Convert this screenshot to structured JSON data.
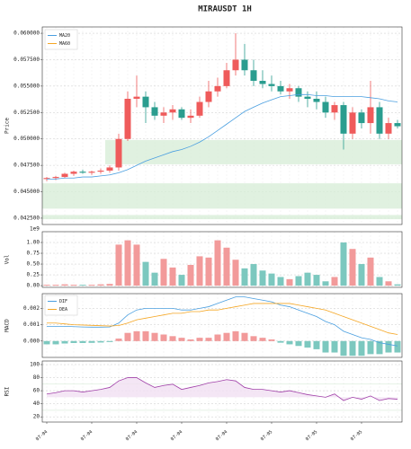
{
  "chart_data": [
    {
      "type": "candlestick",
      "title": "MIRAUSDT 1H",
      "ylabel": "Price",
      "ylim": [
        0.0419,
        0.0606
      ],
      "yticks": [
        {
          "value": 0.0425,
          "label": "0.042500"
        },
        {
          "value": 0.045,
          "label": "0.045000"
        },
        {
          "value": 0.0475,
          "label": "0.047500"
        },
        {
          "value": 0.05,
          "label": "0.050000"
        },
        {
          "value": 0.0525,
          "label": "0.052500"
        },
        {
          "value": 0.055,
          "label": "0.055000"
        },
        {
          "value": 0.0575,
          "label": "0.057500"
        },
        {
          "value": 0.06,
          "label": "0.060000"
        }
      ],
      "grid": true,
      "up_color": "#ef5b5b",
      "down_color": "#2a9d8f",
      "zone_color": "#d8eed8",
      "open": [
        0.0462,
        0.0463,
        0.0464,
        0.0467,
        0.0469,
        0.0468,
        0.0469,
        0.047,
        0.0473,
        0.05,
        0.0538,
        0.054,
        0.053,
        0.0522,
        0.0525,
        0.0528,
        0.052,
        0.0522,
        0.0535,
        0.0545,
        0.055,
        0.0565,
        0.0575,
        0.0565,
        0.0555,
        0.0552,
        0.055,
        0.0545,
        0.0548,
        0.054,
        0.0538,
        0.0535,
        0.0525,
        0.0532,
        0.0505,
        0.0525,
        0.0515,
        0.053,
        0.0505,
        0.0515
      ],
      "high": [
        0.0464,
        0.0465,
        0.0468,
        0.047,
        0.0471,
        0.047,
        0.0472,
        0.0475,
        0.0505,
        0.0545,
        0.056,
        0.0545,
        0.0535,
        0.053,
        0.0532,
        0.053,
        0.0528,
        0.054,
        0.0555,
        0.0558,
        0.0572,
        0.06,
        0.059,
        0.0575,
        0.0565,
        0.056,
        0.0555,
        0.0552,
        0.055,
        0.0545,
        0.0545,
        0.054,
        0.0535,
        0.0535,
        0.053,
        0.0528,
        0.0555,
        0.0535,
        0.052,
        0.0518
      ],
      "low": [
        0.046,
        0.0461,
        0.0463,
        0.0465,
        0.0467,
        0.0466,
        0.0467,
        0.0468,
        0.047,
        0.0498,
        0.053,
        0.0515,
        0.0518,
        0.0515,
        0.0518,
        0.0518,
        0.0515,
        0.052,
        0.053,
        0.054,
        0.0548,
        0.056,
        0.056,
        0.055,
        0.0548,
        0.0545,
        0.0542,
        0.0538,
        0.0535,
        0.053,
        0.0528,
        0.052,
        0.0518,
        0.049,
        0.05,
        0.051,
        0.0505,
        0.05,
        0.05,
        0.051
      ],
      "close": [
        0.0463,
        0.0464,
        0.0467,
        0.0469,
        0.0468,
        0.0469,
        0.047,
        0.0473,
        0.05,
        0.0538,
        0.054,
        0.053,
        0.0522,
        0.0525,
        0.0528,
        0.052,
        0.0522,
        0.0535,
        0.0545,
        0.055,
        0.0565,
        0.0575,
        0.0565,
        0.0555,
        0.0552,
        0.055,
        0.0545,
        0.0548,
        0.054,
        0.0538,
        0.0535,
        0.0525,
        0.0532,
        0.0505,
        0.0525,
        0.0515,
        0.053,
        0.0505,
        0.0515,
        0.0512
      ],
      "series": [
        {
          "name": "MA20",
          "color": "#4a9fe0",
          "values": [
            0.0462,
            0.0462,
            0.0463,
            0.0463,
            0.0464,
            0.0464,
            0.0465,
            0.0466,
            0.0468,
            0.0471,
            0.0475,
            0.0479,
            0.0482,
            0.0485,
            0.0488,
            0.049,
            0.0493,
            0.0497,
            0.0502,
            0.0508,
            0.0514,
            0.052,
            0.0526,
            0.053,
            0.0534,
            0.0537,
            0.054,
            0.0541,
            0.0542,
            0.0542,
            0.0541,
            0.0541,
            0.054,
            0.054,
            0.054,
            0.054,
            0.0539,
            0.0538,
            0.0536,
            0.0535
          ]
        },
        {
          "name": "MA60",
          "color": "#f5a623",
          "values": [
            null,
            null,
            null,
            null,
            null,
            null,
            null,
            null,
            null,
            null,
            null,
            null,
            null,
            null,
            null,
            null,
            null,
            null,
            null,
            null,
            null,
            null,
            null,
            null,
            null,
            null,
            null,
            null,
            null,
            null,
            null,
            null,
            null,
            null,
            null,
            null,
            null,
            null,
            null,
            null
          ]
        }
      ],
      "zones": [
        {
          "low": 0.0476,
          "high": 0.0499,
          "start": 7
        },
        {
          "low": 0.0434,
          "high": 0.0458,
          "start": 0
        },
        {
          "low": 0.0424,
          "high": 0.0428,
          "start": 0
        }
      ]
    },
    {
      "type": "volume",
      "ylabel": "Vol",
      "offset": "1e9",
      "ylim": [
        -0.04,
        1.25
      ],
      "yticks": [
        {
          "value": 0,
          "label": "0.00"
        },
        {
          "value": 0.25,
          "label": "0.25"
        },
        {
          "value": 0.5,
          "label": "0.50"
        },
        {
          "value": 0.75,
          "label": "0.75"
        },
        {
          "value": 1,
          "label": "1.00"
        }
      ],
      "grid": true,
      "up_color": "#f29a9a",
      "down_color": "#7cc8bf",
      "values": [
        0.02,
        0.02,
        0.03,
        0.02,
        0.02,
        0.02,
        0.03,
        0.04,
        0.95,
        1.05,
        0.95,
        0.55,
        0.3,
        0.62,
        0.42,
        0.25,
        0.48,
        0.68,
        0.65,
        1.05,
        0.88,
        0.6,
        0.4,
        0.5,
        0.35,
        0.28,
        0.2,
        0.15,
        0.22,
        0.3,
        0.25,
        0.1,
        0.2,
        1.0,
        0.85,
        0.5,
        0.65,
        0.2,
        0.1,
        0.03
      ]
    },
    {
      "type": "macd",
      "ylabel": "MACD",
      "ylim": [
        -0.001,
        0.0029
      ],
      "yticks": [
        {
          "value": 0,
          "label": "0.000"
        },
        {
          "value": 0.001,
          "label": "0.001"
        },
        {
          "value": 0.002,
          "label": "0.002"
        }
      ],
      "grid": true,
      "up_color": "#f29a9a",
      "down_color": "#7cc8bf",
      "series": [
        {
          "name": "DIF",
          "color": "#4a9fe0",
          "values": [
            0.0009,
            0.0009,
            0.0009,
            0.00088,
            0.00086,
            0.00085,
            0.00085,
            0.00086,
            0.0011,
            0.0016,
            0.0019,
            0.002,
            0.002,
            0.002,
            0.002,
            0.0019,
            0.0019,
            0.002,
            0.0021,
            0.0023,
            0.0025,
            0.0027,
            0.0027,
            0.0026,
            0.0025,
            0.0024,
            0.0022,
            0.0021,
            0.0019,
            0.0017,
            0.0015,
            0.0012,
            0.001,
            0.0006,
            0.0004,
            0.0002,
            0.0001,
            -0.0001,
            -0.0002,
            -0.0003
          ]
        },
        {
          "name": "DEA",
          "color": "#f5a623",
          "values": [
            0.0011,
            0.0011,
            0.00105,
            0.001,
            0.00098,
            0.00096,
            0.00094,
            0.00092,
            0.00095,
            0.0011,
            0.0013,
            0.0014,
            0.0015,
            0.0016,
            0.0017,
            0.0017,
            0.0018,
            0.0018,
            0.0019,
            0.0019,
            0.002,
            0.0021,
            0.0022,
            0.0023,
            0.0023,
            0.0023,
            0.0023,
            0.0023,
            0.0022,
            0.0021,
            0.002,
            0.0019,
            0.0017,
            0.0015,
            0.0013,
            0.0011,
            0.0009,
            0.0007,
            0.0005,
            0.0004
          ]
        }
      ],
      "histogram": [
        -0.0002,
        -0.0002,
        -0.00015,
        -0.00012,
        -0.00012,
        -0.00011,
        -9e-05,
        -6e-05,
        0.00015,
        0.0005,
        0.0006,
        0.0006,
        0.0005,
        0.0004,
        0.0003,
        0.0002,
        0.0001,
        0.0002,
        0.0002,
        0.0004,
        0.0005,
        0.0006,
        0.0005,
        0.0003,
        0.0002,
        0.0001,
        -0.0001,
        -0.0002,
        -0.0003,
        -0.0004,
        -0.0005,
        -0.0007,
        -0.0007,
        -0.0009,
        -0.0009,
        -0.0009,
        -0.0008,
        -0.0008,
        -0.0007,
        -0.0007
      ]
    },
    {
      "type": "rsi",
      "ylabel": "RSI",
      "color": "#a040a8",
      "fill": "#f1e0f3",
      "ylim": [
        12,
        105.5
      ],
      "yticks": [
        20,
        40,
        60,
        80,
        100
      ],
      "grid": true,
      "values": [
        55,
        57,
        60,
        60,
        58,
        60,
        62,
        65,
        75,
        80,
        80,
        72,
        65,
        68,
        70,
        62,
        65,
        68,
        72,
        74,
        77,
        75,
        65,
        62,
        62,
        60,
        58,
        60,
        57,
        54,
        52,
        50,
        55,
        45,
        50,
        47,
        52,
        45,
        48,
        47
      ],
      "categories": [
        "07-04",
        null,
        null,
        null,
        null,
        "07-04",
        null,
        null,
        null,
        null,
        "07-04",
        null,
        null,
        null,
        null,
        "07-04",
        null,
        null,
        null,
        null,
        "07-04",
        null,
        null,
        null,
        null,
        "07-05",
        null,
        null,
        null,
        null,
        "07-05",
        null,
        null,
        null,
        null,
        "07-05",
        null,
        null,
        null,
        null
      ]
    }
  ]
}
